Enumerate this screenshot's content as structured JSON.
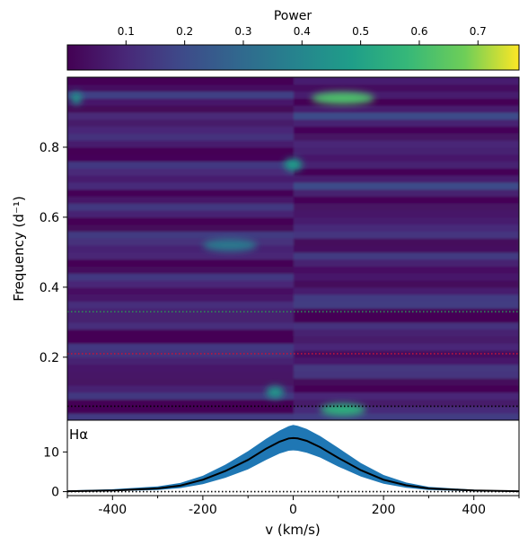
{
  "chart_data": [
    {
      "type": "colorbar",
      "label": "Power",
      "ticks": [
        {
          "value": 0.1,
          "label": "0.1"
        },
        {
          "value": 0.2,
          "label": "0.2"
        },
        {
          "value": 0.3,
          "label": "0.3"
        },
        {
          "value": 0.4,
          "label": "0.4"
        },
        {
          "value": 0.5,
          "label": "0.5"
        },
        {
          "value": 0.6,
          "label": "0.6"
        },
        {
          "value": 0.7,
          "label": "0.7"
        }
      ],
      "range": [
        0.0,
        0.77
      ],
      "colormap": "viridis"
    },
    {
      "type": "heatmap",
      "ylabel": "Frequency (d⁻¹)",
      "xlabel": "",
      "xlim": [
        -500,
        500
      ],
      "ylim": [
        0.02,
        1.0
      ],
      "yticks": [
        {
          "value": 0.2,
          "label": "0.2"
        },
        {
          "value": 0.4,
          "label": "0.4"
        },
        {
          "value": 0.6,
          "label": "0.6"
        },
        {
          "value": 0.8,
          "label": "0.8"
        }
      ],
      "hlines": [
        {
          "y": 0.33,
          "color": "#2e8b57",
          "style": "dotted"
        },
        {
          "y": 0.21,
          "color": "#c0143c",
          "style": "dotted"
        },
        {
          "y": 0.06,
          "color": "#000000",
          "style": "dotted"
        }
      ],
      "features": [
        {
          "v": [
            40,
            180
          ],
          "f": 0.94,
          "power": 0.62
        },
        {
          "v": [
            -20,
            20
          ],
          "f": 0.75,
          "power": 0.48
        },
        {
          "v": [
            60,
            160
          ],
          "f": 0.05,
          "power": 0.55
        },
        {
          "v": [
            -200,
            -80
          ],
          "f": 0.52,
          "power": 0.35
        },
        {
          "v": [
            -60,
            -20
          ],
          "f": 0.1,
          "power": 0.45
        },
        {
          "v": [
            -490,
            -470
          ],
          "f": 0.94,
          "power": 0.45
        }
      ]
    },
    {
      "type": "line",
      "annotation": "Hα",
      "xlabel": "v (km/s)",
      "ylabel": "",
      "xlim": [
        -500,
        500
      ],
      "ylim": [
        -1,
        18
      ],
      "xticks": [
        {
          "value": -400,
          "label": "-400"
        },
        {
          "value": -200,
          "label": "-200"
        },
        {
          "value": 0,
          "label": "0"
        },
        {
          "value": 200,
          "label": "200"
        },
        {
          "value": 400,
          "label": "400"
        }
      ],
      "yticks": [
        {
          "value": 0,
          "label": "0"
        },
        {
          "value": 10,
          "label": "10"
        }
      ],
      "series": [
        {
          "style": "mean-line",
          "color": "#000000",
          "x": [
            -500,
            -400,
            -300,
            -250,
            -200,
            -150,
            -100,
            -60,
            -30,
            -10,
            0,
            10,
            30,
            60,
            100,
            150,
            200,
            250,
            300,
            400,
            500
          ],
          "y": [
            0.1,
            0.3,
            0.8,
            1.5,
            3.0,
            5.2,
            8.0,
            10.8,
            12.6,
            13.4,
            13.5,
            13.4,
            12.8,
            11.2,
            8.5,
            5.4,
            3.0,
            1.6,
            0.8,
            0.3,
            0.1
          ]
        },
        {
          "style": "spread-band",
          "color": "#1f77b4",
          "x": [
            -500,
            -400,
            -300,
            -250,
            -200,
            -150,
            -100,
            -60,
            -30,
            -10,
            0,
            10,
            30,
            60,
            100,
            150,
            200,
            250,
            300,
            400,
            500
          ],
          "upper": [
            0.3,
            0.6,
            1.3,
            2.2,
            4.0,
            6.8,
            10.2,
            13.3,
            15.4,
            16.5,
            16.8,
            16.6,
            15.8,
            14.0,
            11.0,
            7.2,
            4.2,
            2.3,
            1.2,
            0.5,
            0.2
          ],
          "lower": [
            0.0,
            0.1,
            0.4,
            0.9,
            1.9,
            3.5,
            5.6,
            8.0,
            9.6,
            10.3,
            10.4,
            10.3,
            9.8,
            8.6,
            6.3,
            3.8,
            2.0,
            1.0,
            0.4,
            0.1,
            0.0
          ]
        }
      ],
      "hlines": [
        {
          "y": 0,
          "color": "#000000",
          "style": "dotted"
        }
      ]
    }
  ]
}
